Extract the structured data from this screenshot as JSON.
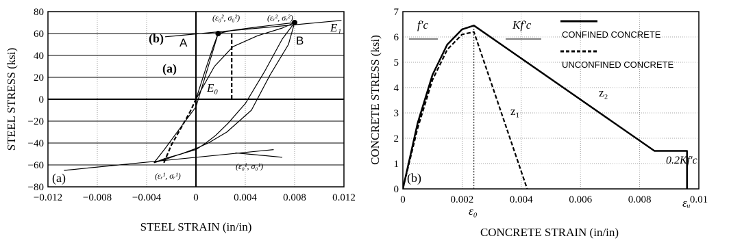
{
  "chart_data": [
    {
      "type": "line",
      "panel_label": "(a)",
      "xlabel": "STEEL STRAIN (in/in)",
      "ylabel": "STEEL STRESS (ksi)",
      "xlim": [
        -0.012,
        0.012
      ],
      "ylim": [
        -80,
        80
      ],
      "xticks": [
        "−0.012",
        "−0.008",
        "−0.004",
        "0",
        "0.004",
        "0.008",
        "0.012"
      ],
      "yticks": [
        "80",
        "60",
        "40",
        "20",
        "0",
        "−20",
        "−40",
        "−60",
        "−80"
      ],
      "grid": true,
      "series": [
        {
          "style": "solid",
          "x": [
            -0.0034,
            -0.0025,
            -0.0015,
            0.0,
            0.0008,
            0.0016,
            0.0026,
            0.004,
            0.0056,
            0.007,
            0.008
          ],
          "y": [
            -58,
            -55,
            -51,
            -46,
            -40,
            -33,
            -22,
            -4,
            26,
            55,
            70
          ]
        },
        {
          "style": "solid",
          "x": [
            -0.0034,
            -0.0025,
            -0.001,
            0.0,
            0.001,
            0.0018
          ],
          "y": [
            -58,
            -45,
            -22,
            -7,
            30,
            60
          ]
        },
        {
          "style": "solid",
          "x": [
            0.0,
            0.0008,
            0.0014,
            0.0018
          ],
          "y": [
            0,
            28,
            48,
            60
          ]
        },
        {
          "style": "solid",
          "x": [
            0.0018,
            0.003,
            0.005,
            0.008
          ],
          "y": [
            60,
            63,
            66,
            70
          ]
        },
        {
          "style": "solid",
          "x": [
            0.0,
            0.0015,
            0.003,
            0.005,
            0.007,
            0.008
          ],
          "y": [
            0,
            30,
            48,
            58,
            65,
            70
          ]
        },
        {
          "style": "solid",
          "x": [
            0.008,
            0.0075,
            0.006,
            0.0045,
            0.0025,
            0.001,
            0.0,
            -0.0012,
            -0.0025,
            -0.0034
          ],
          "y": [
            70,
            50,
            22,
            -10,
            -30,
            -40,
            -45,
            -50,
            -54,
            -58
          ]
        },
        {
          "style": "dashed",
          "x": [
            -0.0026,
            -0.002,
            -0.0012,
            -0.0005,
            0.0
          ],
          "y": [
            -58,
            -42,
            -26,
            -12,
            0
          ]
        },
        {
          "style": "dashed",
          "x": [
            0.0029,
            0.0029
          ],
          "y": [
            0,
            61
          ]
        },
        {
          "style": "solid",
          "x": [
            -0.0107,
            0.0063
          ],
          "y": [
            -65,
            -46
          ]
        },
        {
          "style": "solid",
          "x": [
            -0.0025,
            0.0118
          ],
          "y": [
            57,
            72
          ]
        },
        {
          "style": "solid",
          "x": [
            0.0032,
            0.007
          ],
          "y": [
            -49,
            -53
          ]
        }
      ],
      "points": [
        {
          "label": "(ε₀², σ₀²)",
          "x": 0.0018,
          "y": 60
        },
        {
          "label": "(εᵣ², σᵣ²)",
          "x": 0.008,
          "y": 70
        }
      ],
      "annotations": [
        "(b)",
        "(a)",
        "A",
        "B",
        "E₁",
        "E₀",
        "(ε₀², σ₀²)",
        "(εᵣ², σᵣ²)",
        "(εᵣ¹, σᵣ¹)",
        "(ε₀¹, σ₀¹)"
      ]
    },
    {
      "type": "line",
      "panel_label": "(b)",
      "xlabel": "CONCRETE STRAIN (in/in)",
      "ylabel": "CONCRETE STRESS (ksi)",
      "xlim": [
        0,
        0.01
      ],
      "ylim": [
        0,
        7
      ],
      "xticks": [
        "0",
        "0.002",
        "0.004",
        "0.006",
        "0.008",
        "0.01"
      ],
      "yticks": [
        "7",
        "6",
        "5",
        "4",
        "3",
        "2",
        "1",
        "0"
      ],
      "grid": true,
      "legend": [
        {
          "label": "CONFINED CONCRETE",
          "style": "solid"
        },
        {
          "label": "UNCONFINED CONCRETE",
          "style": "dashed"
        }
      ],
      "series": [
        {
          "name": "CONFINED CONCRETE",
          "style": "solid",
          "x": [
            0,
            0.0005,
            0.001,
            0.0015,
            0.002,
            0.0024,
            0.0085,
            0.0096,
            0.0096
          ],
          "y": [
            0,
            2.6,
            4.5,
            5.7,
            6.3,
            6.45,
            1.5,
            1.5,
            0
          ]
        },
        {
          "name": "UNCONFINED CONCRETE",
          "style": "dashed",
          "x": [
            0,
            0.0005,
            0.001,
            0.0015,
            0.002,
            0.0024,
            0.0042
          ],
          "y": [
            0,
            2.4,
            4.3,
            5.5,
            6.1,
            6.2,
            0
          ]
        },
        {
          "style": "dotted",
          "x": [
            0.0024,
            0.0024
          ],
          "y": [
            0,
            6.4
          ]
        }
      ],
      "annotations": [
        "f′c",
        "Kf′c",
        "z₁",
        "z₂",
        "0.2Kf′c",
        "ε₀",
        "εᵤ"
      ]
    }
  ]
}
